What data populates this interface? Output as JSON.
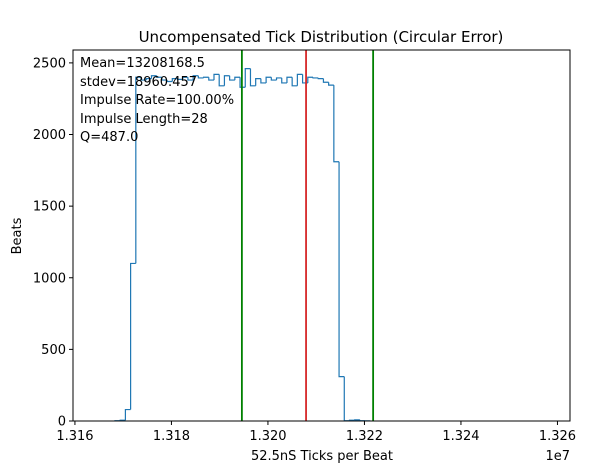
{
  "chart_data": {
    "type": "step-histogram",
    "title": "Uncompensated Tick Distribution (Circular Error)",
    "xlabel": "52.5nS Ticks per Beat",
    "ylabel": "Beats",
    "x_offset_label": "1e7",
    "xlim": [
      1.31596,
      1.32626
    ],
    "ylim": [
      0,
      2590
    ],
    "x_ticks": [
      1.316,
      1.318,
      1.32,
      1.322,
      1.324,
      1.326
    ],
    "x_tick_labels": [
      "1.316",
      "1.318",
      "1.320",
      "1.322",
      "1.324",
      "1.326"
    ],
    "y_ticks": [
      0,
      500,
      1000,
      1500,
      2000,
      2500
    ],
    "y_tick_labels": [
      "0",
      "500",
      "1000",
      "1500",
      "2000",
      "2500"
    ],
    "bin_start": 1.31683,
    "bin_width": 0.000108,
    "counts": [
      2,
      5,
      80,
      1100,
      2400,
      2380,
      2390,
      2410,
      2400,
      2380,
      2370,
      2390,
      2385,
      2400,
      2380,
      2410,
      2395,
      2400,
      2380,
      2420,
      2340,
      2410,
      2380,
      2400,
      2330,
      2460,
      2340,
      2390,
      2360,
      2400,
      2380,
      2395,
      2360,
      2400,
      2340,
      2420,
      2360,
      2400,
      2395,
      2390,
      2365,
      2345,
      1810,
      310,
      2,
      5,
      8,
      2,
      1
    ],
    "vertical_lines": [
      {
        "x": 1.32079,
        "color": "#d62728"
      },
      {
        "x": 1.31946,
        "color": "#008000"
      },
      {
        "x": 1.32218,
        "color": "#008000"
      }
    ],
    "series_color": "#1f77b4",
    "grid": false,
    "annotations": [
      "Mean=13208168.5",
      "stdev=18960.457",
      "Impulse Rate=100.00%",
      "Impulse Length=28",
      "Q=487.0"
    ]
  }
}
